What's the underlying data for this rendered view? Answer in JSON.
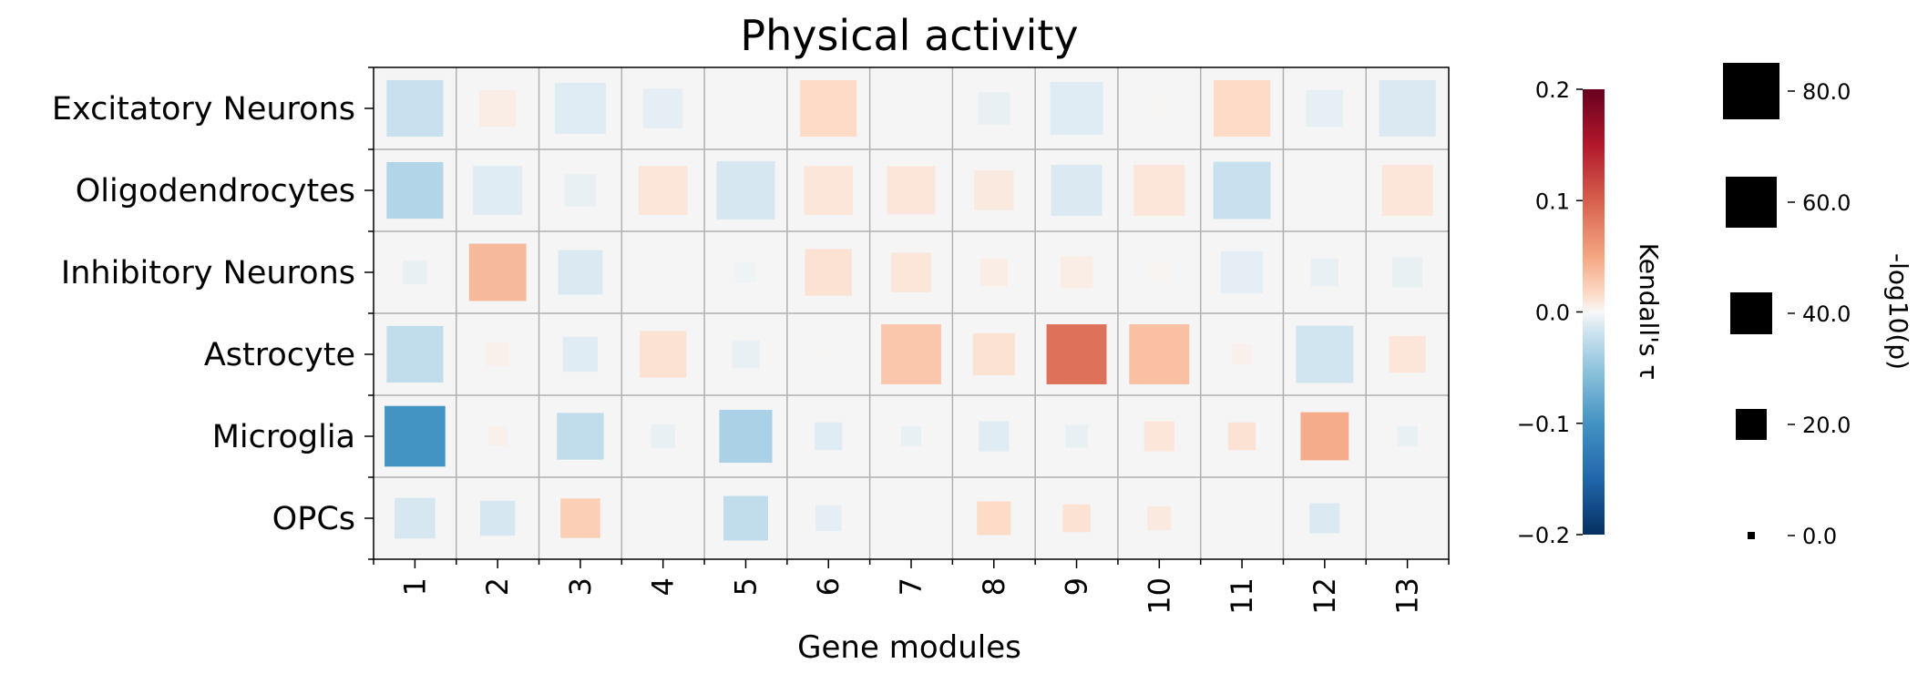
{
  "chart_data": {
    "type": "heatmap",
    "title": "Physical activity",
    "xlabel": "Gene modules",
    "ylabel": "",
    "x_categories": [
      "1",
      "2",
      "3",
      "4",
      "5",
      "6",
      "7",
      "8",
      "9",
      "10",
      "11",
      "12",
      "13"
    ],
    "y_categories": [
      "Excitatory Neurons",
      "Oligodendrocytes",
      "Inhibitory Neurons",
      "Astrocyte",
      "Microglia",
      "OPCs"
    ],
    "encoding": {
      "color": "Kendall's τ",
      "size": "-log10(p)"
    },
    "cells": [
      [
        [
          -0.045,
          70
        ],
        [
          0.015,
          25
        ],
        [
          -0.025,
          55
        ],
        [
          -0.02,
          30
        ],
        [
          0,
          0
        ],
        [
          0.04,
          70
        ],
        [
          0,
          0
        ],
        [
          -0.015,
          18
        ],
        [
          -0.025,
          60
        ],
        [
          0.003,
          4
        ],
        [
          0.04,
          70
        ],
        [
          -0.018,
          25
        ],
        [
          -0.03,
          70
        ]
      ],
      [
        [
          -0.06,
          70
        ],
        [
          -0.025,
          50
        ],
        [
          -0.015,
          18
        ],
        [
          0.025,
          50
        ],
        [
          -0.035,
          75
        ],
        [
          0.025,
          50
        ],
        [
          0.025,
          48
        ],
        [
          0.02,
          30
        ],
        [
          -0.03,
          55
        ],
        [
          0.025,
          55
        ],
        [
          -0.045,
          72
        ],
        [
          0,
          0
        ],
        [
          0.025,
          55
        ]
      ],
      [
        [
          -0.015,
          8
        ],
        [
          0.065,
          72
        ],
        [
          -0.03,
          40
        ],
        [
          0,
          0
        ],
        [
          -0.01,
          5
        ],
        [
          0.03,
          45
        ],
        [
          0.025,
          30
        ],
        [
          0.015,
          12
        ],
        [
          0.015,
          18
        ],
        [
          0.005,
          4
        ],
        [
          -0.02,
          35
        ],
        [
          -0.015,
          12
        ],
        [
          -0.015,
          15
        ]
      ],
      [
        [
          -0.05,
          70
        ],
        [
          0.01,
          8
        ],
        [
          -0.025,
          22
        ],
        [
          0.03,
          45
        ],
        [
          -0.015,
          12
        ],
        [
          0.003,
          2
        ],
        [
          0.055,
          80
        ],
        [
          0.03,
          35
        ],
        [
          0.11,
          80
        ],
        [
          0.06,
          80
        ],
        [
          0.01,
          5
        ],
        [
          -0.04,
          72
        ],
        [
          0.025,
          25
        ]
      ],
      [
        [
          -0.12,
          82
        ],
        [
          0.01,
          4
        ],
        [
          -0.05,
          45
        ],
        [
          -0.015,
          8
        ],
        [
          -0.065,
          60
        ],
        [
          -0.025,
          12
        ],
        [
          -0.015,
          5
        ],
        [
          -0.025,
          15
        ],
        [
          -0.015,
          7
        ],
        [
          0.025,
          15
        ],
        [
          0.03,
          12
        ],
        [
          0.075,
          48
        ],
        [
          -0.015,
          5
        ]
      ],
      [
        [
          -0.035,
          32
        ],
        [
          -0.035,
          22
        ],
        [
          0.05,
          30
        ],
        [
          0,
          0
        ],
        [
          -0.05,
          40
        ],
        [
          -0.02,
          10
        ],
        [
          0,
          0
        ],
        [
          0.04,
          20
        ],
        [
          0.03,
          12
        ],
        [
          0.02,
          8
        ],
        [
          0,
          0
        ],
        [
          -0.03,
          15
        ],
        [
          0,
          0
        ]
      ]
    ],
    "colorbar": {
      "label": "Kendall's τ",
      "range": [
        -0.2,
        0.2
      ],
      "ticks": [
        "0.2",
        "0.1",
        "0.0",
        "−0.1",
        "−0.2"
      ],
      "colormap": "RdBu_r"
    },
    "size_legend": {
      "label": "-log10(p)",
      "entries": [
        "80.0",
        "60.0",
        "40.0",
        "20.0",
        "0.0"
      ]
    },
    "grid": true,
    "background_color": "#f5f5f5"
  }
}
